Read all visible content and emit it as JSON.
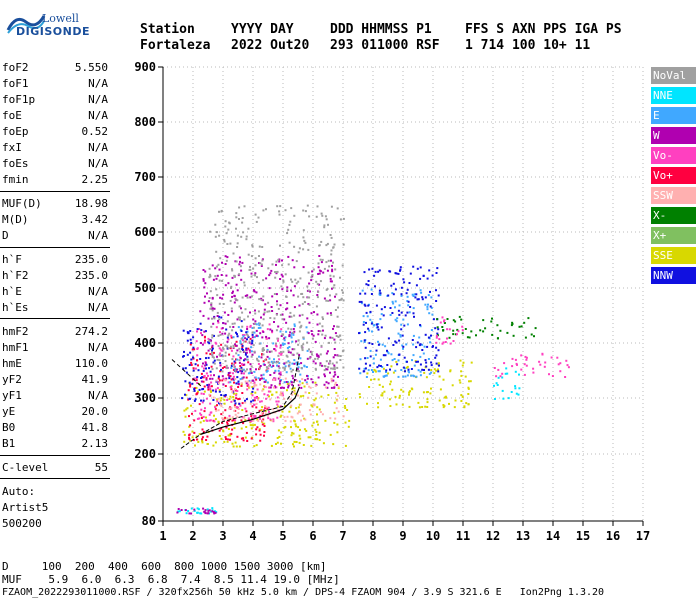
{
  "logo": {
    "line1": "Lowell",
    "line2": "DIGISONDE"
  },
  "header": {
    "labels": [
      "Station",
      "YYYY DAY",
      "DDD HHMMSS P1",
      "FFS S AXN PPS IGA PS"
    ],
    "values": [
      "Fortaleza",
      "2022 Out20",
      "293 011000 RSF",
      "1 714 100 10+ 11"
    ]
  },
  "params": [
    {
      "name": "foF2",
      "value": "5.550"
    },
    {
      "name": "foF1",
      "value": "N/A"
    },
    {
      "name": "foF1p",
      "value": "N/A"
    },
    {
      "name": "foE",
      "value": "N/A"
    },
    {
      "name": "foEp",
      "value": "0.52"
    },
    {
      "name": "fxI",
      "value": "N/A"
    },
    {
      "name": "foEs",
      "value": "N/A"
    },
    {
      "name": "fmin",
      "value": "2.25"
    },
    {
      "name": "MUF(D)",
      "value": "18.98"
    },
    {
      "name": "M(D)",
      "value": "3.42"
    },
    {
      "name": "D",
      "value": "N/A"
    },
    {
      "name": "h`F",
      "value": "235.0"
    },
    {
      "name": "h`F2",
      "value": "235.0"
    },
    {
      "name": "h`E",
      "value": "N/A"
    },
    {
      "name": "h`Es",
      "value": "N/A"
    },
    {
      "name": "hmF2",
      "value": "274.2"
    },
    {
      "name": "hmF1",
      "value": "N/A"
    },
    {
      "name": "hmE",
      "value": "110.0"
    },
    {
      "name": "yF2",
      "value": "41.9"
    },
    {
      "name": "yF1",
      "value": "N/A"
    },
    {
      "name": "yE",
      "value": "20.0"
    },
    {
      "name": "B0",
      "value": "41.8"
    },
    {
      "name": "B1",
      "value": "2.13"
    },
    {
      "name": "C-level",
      "value": "55"
    }
  ],
  "auto": {
    "line1": "Auto:",
    "line2": "Artist5",
    "line3": "500200"
  },
  "legend": [
    {
      "label": "NoVal",
      "color": "#a0a0a0"
    },
    {
      "label": "NNE",
      "color": "#00e5ff"
    },
    {
      "label": "E",
      "color": "#40a8ff"
    },
    {
      "label": "W",
      "color": "#b000b0"
    },
    {
      "label": "Vo-",
      "color": "#ff40c0"
    },
    {
      "label": "Vo+",
      "color": "#ff0040"
    },
    {
      "label": "SSW",
      "color": "#ffb0b0"
    },
    {
      "label": "X-",
      "color": "#008000"
    },
    {
      "label": "X+",
      "color": "#80c060"
    },
    {
      "label": "SSE",
      "color": "#d8d800"
    },
    {
      "label": "NNW",
      "color": "#1010e0"
    }
  ],
  "footer": {
    "d_row": "D     100  200  400  600  800 1000 1500 3000 [km]",
    "muf_row": "MUF    5.9  6.0  6.3  6.8  7.4  8.5 11.4 19.0 [MHz]",
    "file_row": "FZAOM_2022293011000.RSF / 320fx256h 50 kHz 5.0 km / DPS-4 FZAOM 904 / 3.9 S 321.6 E   Ion2Png 1.3.20"
  },
  "chart_data": {
    "type": "scatter",
    "xlim": [
      1,
      17
    ],
    "ylim": [
      80,
      900
    ],
    "x_ticks": [
      "1",
      "2",
      "3",
      "4",
      "5",
      "6",
      "7",
      "8",
      "9",
      "10",
      "11",
      "12",
      "13",
      "14",
      "15",
      "16",
      "17"
    ],
    "y_ticks": [
      "80",
      "200",
      "300",
      "400",
      "500",
      "600",
      "700",
      "800",
      "900"
    ],
    "grid": true,
    "legend_position": "right",
    "clusters": [
      {
        "mode": "SSE",
        "xmin": 1.6,
        "xmax": 7.2,
        "ymin": 215,
        "ymax": 330
      },
      {
        "mode": "SSE",
        "xmin": 7.5,
        "xmax": 11.3,
        "ymin": 285,
        "ymax": 370
      },
      {
        "mode": "Vo+",
        "xmin": 1.8,
        "xmax": 4.5,
        "ymin": 225,
        "ymax": 420
      },
      {
        "mode": "Vo-",
        "xmin": 2.0,
        "xmax": 5.0,
        "ymin": 260,
        "ymax": 440
      },
      {
        "mode": "E",
        "xmin": 3.2,
        "xmax": 5.8,
        "ymin": 330,
        "ymax": 450
      },
      {
        "mode": "E",
        "xmin": 7.5,
        "xmax": 10.0,
        "ymin": 340,
        "ymax": 500
      },
      {
        "mode": "NNW",
        "xmin": 1.6,
        "xmax": 4.0,
        "ymin": 290,
        "ymax": 450
      },
      {
        "mode": "NNW",
        "xmin": 7.5,
        "xmax": 10.2,
        "ymin": 350,
        "ymax": 540
      },
      {
        "mode": "W",
        "xmin": 2.2,
        "xmax": 6.8,
        "ymin": 320,
        "ymax": 560
      },
      {
        "mode": "SSW",
        "xmin": 2.5,
        "xmax": 7.0,
        "ymin": 260,
        "ymax": 340
      },
      {
        "mode": "NoVal",
        "xmin": 2.5,
        "xmax": 7.0,
        "ymin": 350,
        "ymax": 650
      },
      {
        "mode": "NNE",
        "xmin": 12.0,
        "xmax": 13.0,
        "ymin": 300,
        "ymax": 360
      },
      {
        "mode": "X-",
        "xmin": 10.0,
        "xmax": 13.5,
        "ymin": 410,
        "ymax": 450
      },
      {
        "mode": "Vo-",
        "xmin": 10.0,
        "xmax": 11.0,
        "ymin": 400,
        "ymax": 450
      },
      {
        "mode": "Vo-",
        "xmin": 12.0,
        "xmax": 14.5,
        "ymin": 340,
        "ymax": 385
      },
      {
        "mode": "NNE",
        "xmin": 1.4,
        "xmax": 2.8,
        "ymin": 95,
        "ymax": 105
      },
      {
        "mode": "W",
        "xmin": 1.4,
        "xmax": 2.8,
        "ymin": 95,
        "ymax": 105
      }
    ],
    "trace_profile": [
      [
        2.25,
        235
      ],
      [
        3.0,
        248
      ],
      [
        4.0,
        262
      ],
      [
        5.0,
        280
      ],
      [
        5.4,
        300
      ],
      [
        5.55,
        320
      ]
    ],
    "trace_virtual": [
      [
        1.6,
        210
      ],
      [
        2.25,
        235
      ],
      [
        3.0,
        258
      ],
      [
        4.0,
        272
      ],
      [
        5.0,
        285
      ],
      [
        5.3,
        310
      ],
      [
        5.55,
        380
      ]
    ],
    "trace_dashed": [
      [
        1.3,
        370
      ],
      [
        2.3,
        320
      ]
    ]
  }
}
